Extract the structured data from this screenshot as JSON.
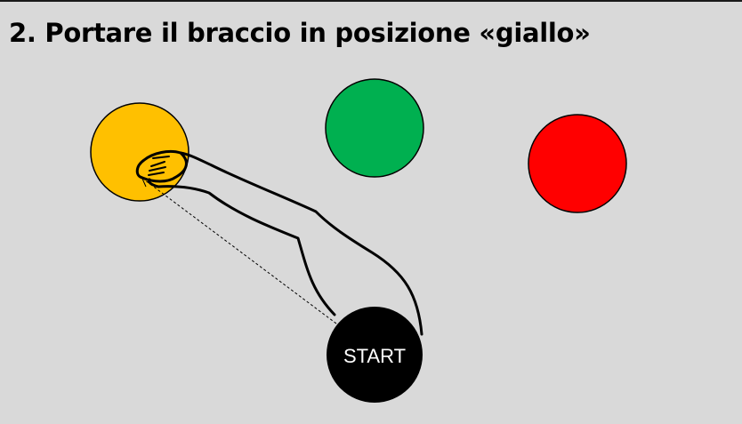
{
  "title": "2. Portare il braccio in posizione «giallo»",
  "targets": [
    {
      "name": "giallo",
      "color": "#ffc000"
    },
    {
      "name": "verde",
      "color": "#00b050"
    },
    {
      "name": "rosso",
      "color": "#ff0000"
    }
  ],
  "start": {
    "label": "START",
    "color": "#000000"
  },
  "arm": {
    "stroke": "#000000"
  },
  "path": {
    "style": "dashed"
  }
}
